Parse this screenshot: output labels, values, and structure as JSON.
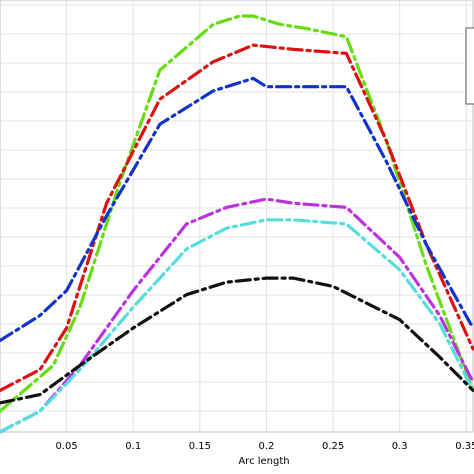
{
  "chart_data": {
    "type": "line",
    "title": "",
    "xlabel": "Arc length",
    "ylabel": "",
    "xlim": [
      0.0,
      0.355
    ],
    "ylim": [
      0,
      1.0
    ],
    "grid": true,
    "legend": "top-right",
    "xticks": [
      0.05,
      0.1,
      0.15,
      0.2,
      0.25,
      0.3,
      0.35
    ],
    "xtick_labels": [
      "0.05",
      "0.1",
      "0.15",
      "0.2",
      "0.25",
      "0.3",
      "0.35"
    ],
    "series": [
      {
        "color": "#66dd11",
        "x": [
          0.0,
          0.04,
          0.06,
          0.09,
          0.12,
          0.16,
          0.18,
          0.19,
          0.21,
          0.23,
          0.26,
          0.29,
          0.32,
          0.355
        ],
        "y": [
          0.05,
          0.16,
          0.3,
          0.6,
          0.87,
          0.98,
          1.0,
          1.0,
          0.98,
          0.97,
          0.95,
          0.7,
          0.4,
          0.1
        ]
      },
      {
        "color": "#dd1111",
        "x": [
          0.0,
          0.03,
          0.05,
          0.08,
          0.12,
          0.16,
          0.19,
          0.22,
          0.26,
          0.29,
          0.32,
          0.355
        ],
        "y": [
          0.1,
          0.15,
          0.25,
          0.55,
          0.8,
          0.89,
          0.93,
          0.92,
          0.91,
          0.7,
          0.45,
          0.2
        ]
      },
      {
        "color": "#1133cc",
        "x": [
          0.0,
          0.03,
          0.05,
          0.08,
          0.12,
          0.16,
          0.19,
          0.2,
          0.21,
          0.26,
          0.29,
          0.32,
          0.355
        ],
        "y": [
          0.22,
          0.28,
          0.34,
          0.52,
          0.74,
          0.82,
          0.85,
          0.83,
          0.83,
          0.83,
          0.65,
          0.45,
          0.25
        ]
      },
      {
        "color": "#bb33dd",
        "x": [
          0.0,
          0.03,
          0.06,
          0.1,
          0.14,
          0.17,
          0.2,
          0.22,
          0.26,
          0.3,
          0.33,
          0.355
        ],
        "y": [
          0.0,
          0.05,
          0.16,
          0.34,
          0.5,
          0.54,
          0.56,
          0.55,
          0.54,
          0.42,
          0.28,
          0.12
        ]
      },
      {
        "color": "#55dddd",
        "x": [
          0.0,
          0.03,
          0.06,
          0.1,
          0.14,
          0.17,
          0.2,
          0.22,
          0.26,
          0.3,
          0.33,
          0.355
        ],
        "y": [
          0.0,
          0.05,
          0.15,
          0.3,
          0.44,
          0.49,
          0.51,
          0.51,
          0.5,
          0.39,
          0.26,
          0.1
        ]
      },
      {
        "color": "#111111",
        "x": [
          0.0,
          0.03,
          0.06,
          0.1,
          0.14,
          0.17,
          0.2,
          0.22,
          0.25,
          0.3,
          0.33,
          0.355
        ],
        "y": [
          0.07,
          0.09,
          0.16,
          0.25,
          0.33,
          0.36,
          0.37,
          0.37,
          0.35,
          0.27,
          0.18,
          0.1
        ]
      }
    ]
  },
  "legend_box": {
    "entries": []
  }
}
